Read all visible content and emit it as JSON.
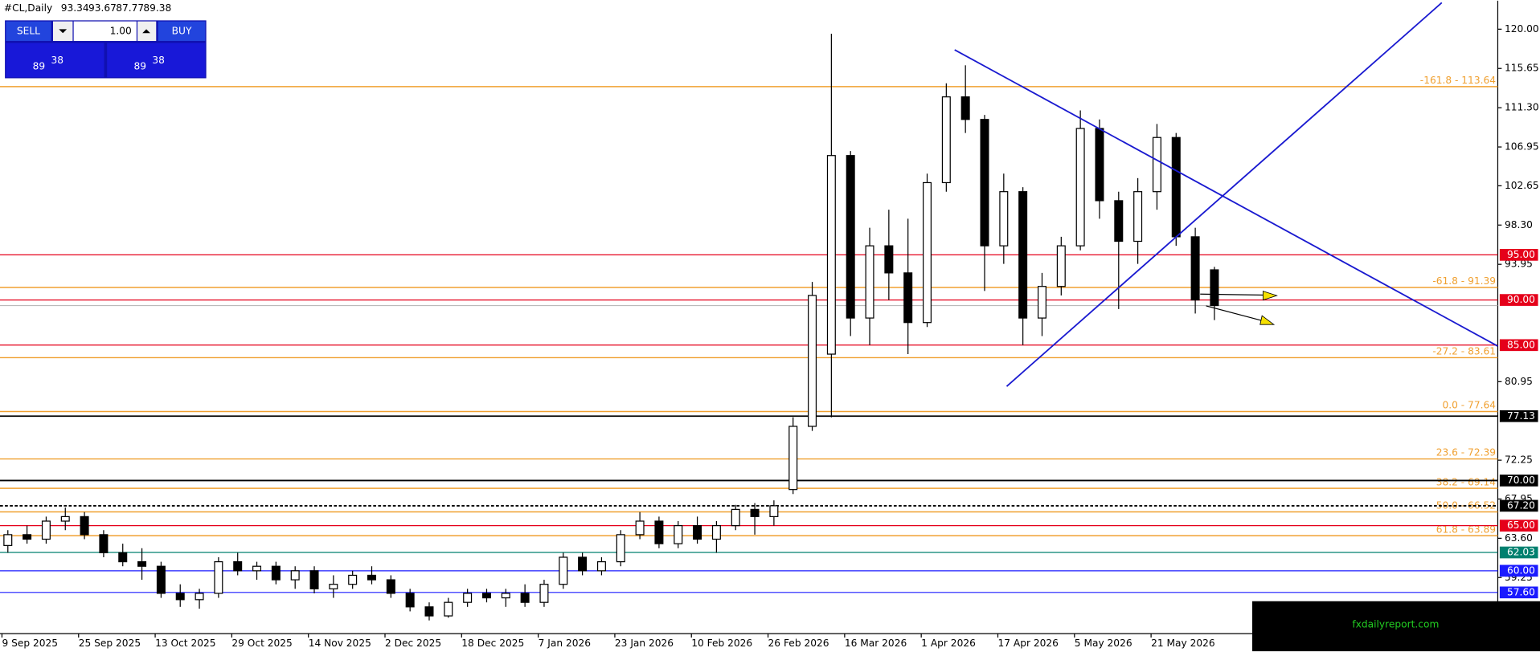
{
  "chart_data": {
    "type": "candlestick",
    "title": "#CL,Daily",
    "header_values": [
      93.34,
      93.67,
      87.77,
      89.38
    ],
    "categories": [
      "9 Sep 2025",
      null,
      null,
      null,
      "25 Sep 2025",
      null,
      null,
      null,
      "13 Oct 2025",
      null,
      null,
      null,
      "29 Oct 2025",
      null,
      null,
      null,
      "14 Nov 2025",
      null,
      null,
      null,
      "2 Dec 2025",
      null,
      null,
      null,
      "18 Dec 2025",
      null,
      null,
      null,
      "7 Jan 2026",
      null,
      null,
      null,
      "23 Jan 2026",
      null,
      null,
      null,
      "10 Feb 2026",
      null,
      null,
      null,
      "26 Feb 2026",
      null,
      null,
      null,
      "16 Mar 2026",
      null,
      null,
      null,
      "1 Apr 2026",
      null,
      null,
      null,
      "17 Apr 2026",
      null,
      null,
      null,
      "5 May 2026",
      null,
      null,
      null,
      "21 May 2026",
      null,
      null,
      null
    ],
    "open": [
      62.8,
      64,
      63.5,
      65.5,
      66,
      64,
      62,
      61,
      60.5,
      57.5,
      56.8,
      57.5,
      61,
      60,
      60.5,
      59,
      60,
      58,
      58.5,
      59.5,
      59,
      57.5,
      56,
      55,
      56.5,
      57.5,
      57,
      57.5,
      56.5,
      58.5,
      61.5,
      60,
      61,
      64,
      65.5,
      63,
      65,
      63.5,
      65,
      66.8,
      66,
      69,
      76,
      84,
      106,
      88,
      96,
      93,
      87.5,
      103,
      112.5,
      110,
      96,
      102,
      88,
      91.5,
      96,
      109,
      101,
      96.5,
      102,
      108,
      97,
      93.34
    ],
    "high": [
      64.5,
      65,
      66,
      67,
      66.5,
      64.5,
      63,
      62.5,
      61,
      58.5,
      58,
      61.5,
      62,
      61,
      61,
      60.5,
      60.5,
      59.5,
      60,
      60.5,
      59.5,
      58,
      56.5,
      57,
      58,
      58,
      58,
      58.5,
      59,
      62,
      62,
      61.5,
      64.5,
      66.5,
      66,
      65.5,
      66,
      65.5,
      67.3,
      67.5,
      67.8,
      77,
      92,
      119.5,
      106.5,
      98,
      100,
      99,
      104,
      114,
      116,
      110.5,
      104,
      102.5,
      93,
      97,
      111,
      110,
      102,
      103.5,
      109.5,
      108.5,
      98,
      93.67
    ],
    "low": [
      62,
      63,
      63,
      64.5,
      63.5,
      61.5,
      60.5,
      59,
      57,
      56,
      55.8,
      57,
      59.5,
      59,
      58.5,
      58,
      57.5,
      57,
      58,
      58.5,
      57,
      55.5,
      54.5,
      54.8,
      56,
      56.5,
      56,
      56,
      56,
      58,
      59.5,
      59.5,
      60.5,
      63.5,
      62.5,
      62.5,
      63,
      62,
      64.5,
      64,
      65,
      68.5,
      75.5,
      77,
      86,
      85,
      90,
      84,
      87,
      102,
      108.5,
      91,
      94,
      85,
      86,
      90.5,
      95.5,
      99,
      89,
      94,
      100,
      96,
      88.5,
      87.77
    ],
    "close": [
      64,
      63.5,
      65.5,
      66,
      64,
      62,
      61,
      60.5,
      57.5,
      56.8,
      57.5,
      61,
      60,
      60.5,
      59,
      60,
      58,
      58.5,
      59.5,
      59,
      57.5,
      56,
      55,
      56.5,
      57.5,
      57,
      57.5,
      56.5,
      58.5,
      61.5,
      60,
      61,
      64,
      65.5,
      63,
      65,
      63.5,
      65,
      66.8,
      66,
      67.2,
      76,
      90.5,
      106,
      88,
      96,
      93,
      87.5,
      103,
      112.5,
      110,
      96,
      102,
      88,
      91.5,
      96,
      109,
      101,
      96.5,
      102,
      108,
      97,
      90,
      89.38
    ],
    "up_color": "#ffffff",
    "down_color": "#000000",
    "ylim": [
      53.04,
      123.15
    ],
    "yticks": [
      {
        "value": 120,
        "label": "120.00"
      },
      {
        "value": 115.65,
        "label": "115.65"
      },
      {
        "value": 111.3,
        "label": "111.30"
      },
      {
        "value": 106.95,
        "label": "106.95"
      },
      {
        "value": 102.65,
        "label": "102.65"
      },
      {
        "value": 98.3,
        "label": "98.30"
      },
      {
        "value": 93.95,
        "label": "93.95"
      },
      {
        "value": 80.95,
        "label": "80.95"
      },
      {
        "value": 72.25,
        "label": "72.25"
      },
      {
        "value": 67.95,
        "label": "67.95"
      },
      {
        "value": 63.6,
        "label": "63.60"
      },
      {
        "value": 59.25,
        "label": "59.25"
      }
    ],
    "levels": [
      {
        "value": 95,
        "label": "95.00",
        "color": "#e5001a"
      },
      {
        "value": 90,
        "label": "90.00",
        "color": "#e5001a"
      },
      {
        "value": 85,
        "label": "85.00",
        "color": "#e5001a"
      },
      {
        "value": 77.13,
        "label": "77.13",
        "color": "#000000"
      },
      {
        "value": 70,
        "label": "70.00",
        "color": "#000000"
      },
      {
        "value": 67.2,
        "label": "67.20",
        "color": "#000000",
        "style": "dashed"
      },
      {
        "value": 65,
        "label": "65.00",
        "color": "#e5001a"
      },
      {
        "value": 62.03,
        "label": "62.03",
        "color": "#00806f"
      },
      {
        "value": 60,
        "label": "60.00",
        "color": "#1a1aff"
      },
      {
        "value": 57.6,
        "label": "57.60",
        "color": "#1a1aff"
      }
    ],
    "fib_color": "#f0a030",
    "fib_levels": [
      {
        "value": 113.64,
        "label": "-161.8 - 113.64"
      },
      {
        "value": 91.39,
        "label": "-61.8 - 91.39"
      },
      {
        "value": 83.61,
        "label": "-27.2 - 83.61"
      },
      {
        "value": 77.64,
        "label": "0.0 - 77.64"
      },
      {
        "value": 72.39,
        "label": "23.6 - 72.39"
      },
      {
        "value": 69.14,
        "label": "38.2 - 69.14"
      },
      {
        "value": 66.52,
        "label": "50.0 - 66.52"
      },
      {
        "value": 63.89,
        "label": "61.8 - 63.89"
      }
    ]
  },
  "trade_panel": {
    "sell": "SELL",
    "lot": "1.00",
    "buy": "BUY",
    "sell_price": {
      "big_figure": "89",
      "pips": "38"
    },
    "buy_price": {
      "big_figure": "89",
      "pips": "38"
    }
  },
  "watermark": "fxdailyreport.com"
}
